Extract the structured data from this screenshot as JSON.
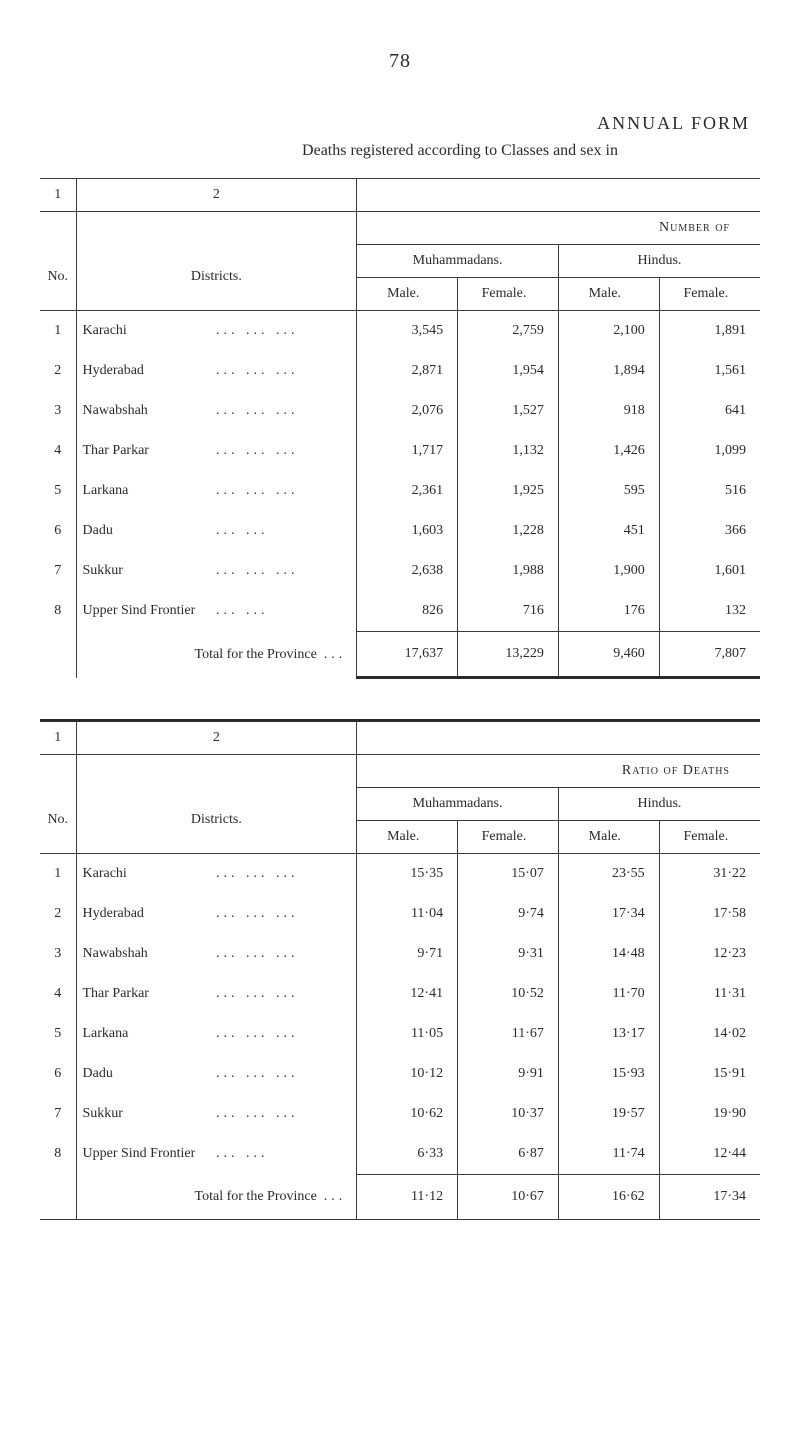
{
  "page_number": "78",
  "heading_main": "ANNUAL FORM",
  "heading_sub": "Deaths registered according to Classes and sex in",
  "table_a": {
    "top_row_1": "1",
    "top_row_2": "2",
    "number_of_label": "Number of",
    "ratio_label": "Ratio of Deaths",
    "no_label": "No.",
    "districts_label": "Districts.",
    "muham_label": "Muhammadans.",
    "hindus_label": "Hindus.",
    "male_label": "Male.",
    "female_label": "Female.",
    "total_label": "Total for the Province",
    "total_dots": "...",
    "total_dots_b": "..."
  },
  "rows_a": [
    {
      "no": "1",
      "name": "Karachi",
      "dots": "...   ...   ...",
      "v1": "3,545",
      "v2": "2,759",
      "v3": "2,100",
      "v4": "1,891"
    },
    {
      "no": "2",
      "name": "Hyderabad",
      "dots": "...   ...   ...",
      "v1": "2,871",
      "v2": "1,954",
      "v3": "1,894",
      "v4": "1,561"
    },
    {
      "no": "3",
      "name": "Nawabshah",
      "dots": "...   ...   ...",
      "v1": "2,076",
      "v2": "1,527",
      "v3": "918",
      "v4": "641"
    },
    {
      "no": "4",
      "name": "Thar Parkar",
      "dots": "...   ...   ...",
      "v1": "1,717",
      "v2": "1,132",
      "v3": "1,426",
      "v4": "1,099"
    },
    {
      "no": "5",
      "name": "Larkana",
      "dots": "...   ...   ...",
      "v1": "2,361",
      "v2": "1,925",
      "v3": "595",
      "v4": "516"
    },
    {
      "no": "6",
      "name": "Dadu",
      "dots": "...   ...",
      "v1": "1,603",
      "v2": "1,228",
      "v3": "451",
      "v4": "366"
    },
    {
      "no": "7",
      "name": "Sukkur",
      "dots": "...   ...   ...",
      "v1": "2,638",
      "v2": "1,988",
      "v3": "1,900",
      "v4": "1,601"
    },
    {
      "no": "8",
      "name": "Upper Sind Frontier",
      "dots": "...   ...",
      "v1": "826",
      "v2": "716",
      "v3": "176",
      "v4": "132"
    }
  ],
  "total_a": {
    "v1": "17,637",
    "v2": "13,229",
    "v3": "9,460",
    "v4": "7,807"
  },
  "rows_b": [
    {
      "no": "1",
      "name": "Karachi",
      "dots": "...   ...   ...",
      "v1": "15·35",
      "v2": "15·07",
      "v3": "23·55",
      "v4": "31·22"
    },
    {
      "no": "2",
      "name": "Hyderabad",
      "dots": "...   ...   ...",
      "v1": "11·04",
      "v2": "9·74",
      "v3": "17·34",
      "v4": "17·58"
    },
    {
      "no": "3",
      "name": "Nawabshah",
      "dots": "...   ...   ...",
      "v1": "9·71",
      "v2": "9·31",
      "v3": "14·48",
      "v4": "12·23"
    },
    {
      "no": "4",
      "name": "Thar Parkar",
      "dots": "...   ...   ...",
      "v1": "12·41",
      "v2": "10·52",
      "v3": "11·70",
      "v4": "11·31"
    },
    {
      "no": "5",
      "name": "Larkana",
      "dots": "...   ...   ...",
      "v1": "11·05",
      "v2": "11·67",
      "v3": "13·17",
      "v4": "14·02"
    },
    {
      "no": "6",
      "name": "Dadu",
      "dots": "...   ...   ...",
      "v1": "10·12",
      "v2": "9·91",
      "v3": "15·93",
      "v4": "15·91"
    },
    {
      "no": "7",
      "name": "Sukkur",
      "dots": "...   ...   ...",
      "v1": "10·62",
      "v2": "10·37",
      "v3": "19·57",
      "v4": "19·90"
    },
    {
      "no": "8",
      "name": "Upper Sind Frontier",
      "dots": "...   ...",
      "v1": "6·33",
      "v2": "6·87",
      "v3": "11·74",
      "v4": "12·44"
    }
  ],
  "total_b": {
    "v1": "11·12",
    "v2": "10·67",
    "v3": "16·62",
    "v4": "17·34"
  }
}
